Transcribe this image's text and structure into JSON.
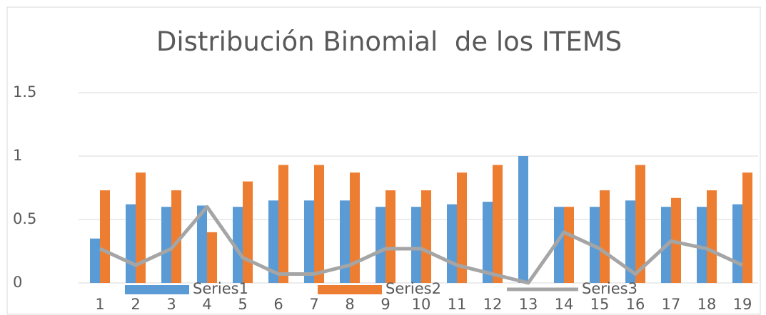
{
  "chart_data": {
    "type": "bar",
    "title": "Distribución Binomial  de los ITEMS",
    "categories": [
      "1",
      "2",
      "3",
      "4",
      "5",
      "6",
      "7",
      "8",
      "9",
      "10",
      "11",
      "12",
      "13",
      "14",
      "15",
      "16",
      "17",
      "18",
      "19"
    ],
    "series": [
      {
        "name": "Series1",
        "type": "bar",
        "color": "#5b9bd5",
        "values": [
          0.35,
          0.62,
          0.6,
          0.61,
          0.6,
          0.65,
          0.65,
          0.65,
          0.6,
          0.6,
          0.62,
          0.64,
          1.0,
          0.6,
          0.6,
          0.65,
          0.6,
          0.6,
          0.62
        ]
      },
      {
        "name": "Series2",
        "type": "bar",
        "color": "#ed7d31",
        "values": [
          0.73,
          0.87,
          0.73,
          0.4,
          0.8,
          0.93,
          0.93,
          0.87,
          0.73,
          0.73,
          0.87,
          0.93,
          0,
          0.6,
          0.73,
          0.93,
          0.67,
          0.73,
          0.87
        ]
      },
      {
        "name": "Series3",
        "type": "line",
        "color": "#a5a5a5",
        "values": [
          0.27,
          0.14,
          0.27,
          0.6,
          0.2,
          0.07,
          0.07,
          0.14,
          0.27,
          0.27,
          0.14,
          0.07,
          0,
          0.4,
          0.27,
          0.07,
          0.33,
          0.27,
          0.14
        ]
      }
    ],
    "ylim": [
      0,
      1.5
    ],
    "yticks": [
      0,
      0.5,
      1,
      1.5
    ],
    "grid": true,
    "legend": "bottom"
  }
}
